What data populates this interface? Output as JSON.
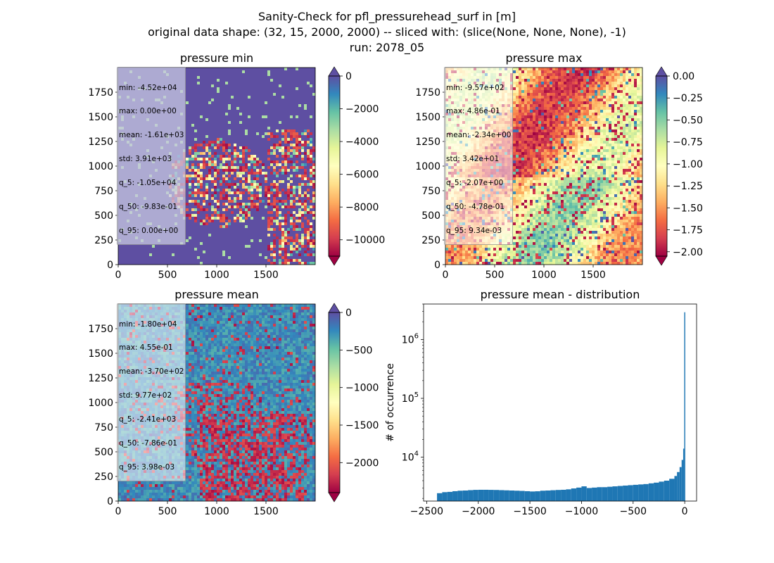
{
  "figure": {
    "title_lines": [
      "Sanity-Check for pfl_pressurehead_surf in [m]",
      "original data shape: (32, 15, 2000, 2000) -- sliced with: (slice(None, None, None), -1)",
      "run: 2078_05"
    ]
  },
  "chart_data": [
    {
      "type": "heatmap",
      "title": "pressure min",
      "colormap": "Spectral",
      "xticks": [
        0,
        500,
        1000,
        1500
      ],
      "yticks": [
        0,
        250,
        500,
        750,
        1000,
        1250,
        1500,
        1750
      ],
      "xlim": [
        0,
        2000
      ],
      "ylim": [
        0,
        2000
      ],
      "colorbar": {
        "range": [
          -11000,
          0
        ],
        "ticks": [
          0,
          -2000,
          -4000,
          -6000,
          -8000,
          -10000
        ],
        "extend": "both"
      },
      "stats": [
        "min: -4.52e+04",
        "max: 0.00e+00",
        "mean: -1.61e+03",
        "std: 3.91e+03",
        "q_5: -1.05e+04",
        "q_50: -9.83e-01",
        "q_95: 0.00e+00"
      ]
    },
    {
      "type": "heatmap",
      "title": "pressure max",
      "colormap": "Spectral",
      "xticks": [
        0,
        500,
        1000,
        1500
      ],
      "yticks": [
        0,
        250,
        500,
        750,
        1000,
        1250,
        1500,
        1750
      ],
      "xlim": [
        0,
        2000
      ],
      "ylim": [
        0,
        2000
      ],
      "colorbar": {
        "range": [
          -2.05,
          0.0
        ],
        "ticks": [
          "0.00",
          "-0.25",
          "-0.50",
          "-0.75",
          "-1.00",
          "-1.25",
          "-1.50",
          "-1.75",
          "-2.00"
        ],
        "extend": "both"
      },
      "stats": [
        "min: -9.57e+02",
        "max: 4.86e-01",
        "mean: -2.34e+00",
        "std: 3.42e+01",
        "q_5: -2.07e+00",
        "q_50: -4.78e-01",
        "q_95: 9.34e-03"
      ]
    },
    {
      "type": "heatmap",
      "title": "pressure mean",
      "colormap": "Spectral",
      "xticks": [
        0,
        500,
        1000,
        1500
      ],
      "yticks": [
        0,
        250,
        500,
        750,
        1000,
        1250,
        1500,
        1750
      ],
      "xlim": [
        0,
        2000
      ],
      "ylim": [
        0,
        2000
      ],
      "colorbar": {
        "range": [
          -2400,
          0
        ],
        "ticks": [
          0,
          -500,
          -1000,
          -1500,
          -2000
        ],
        "extend": "both"
      },
      "stats": [
        "min: -1.80e+04",
        "max: 4.55e-01",
        "mean: -3.70e+02",
        "std: 9.77e+02",
        "q_5: -2.41e+03",
        "q_50: -7.86e-01",
        "q_95: 3.98e-03"
      ]
    },
    {
      "type": "bar",
      "title": "pressure mean - distribution",
      "ylabel": "# of occurrence",
      "yscale": "log",
      "xlim": [
        -2530,
        115
      ],
      "ylim": [
        1800,
        4000000
      ],
      "xticks": [
        -2500,
        -2000,
        -1500,
        -1000,
        -500,
        0
      ],
      "yticks": [
        {
          "value": 10000,
          "label": "10^4"
        },
        {
          "value": 100000,
          "label": "10^5"
        },
        {
          "value": 1000000,
          "label": "10^6"
        }
      ],
      "bar_color": "#1f77b4",
      "bins": {
        "x": [
          -2400,
          -2350,
          -2300,
          -2250,
          -2200,
          -2150,
          -2100,
          -2050,
          -2000,
          -1950,
          -1900,
          -1850,
          -1800,
          -1750,
          -1700,
          -1650,
          -1600,
          -1550,
          -1500,
          -1450,
          -1400,
          -1350,
          -1300,
          -1250,
          -1200,
          -1150,
          -1100,
          -1050,
          -1000,
          -950,
          -900,
          -850,
          -800,
          -750,
          -700,
          -650,
          -600,
          -550,
          -500,
          -450,
          -400,
          -350,
          -300,
          -250,
          -200,
          -150,
          -100,
          -75,
          -50,
          -30,
          -15,
          -5
        ],
        "width": [
          50,
          50,
          50,
          50,
          50,
          50,
          50,
          50,
          50,
          50,
          50,
          50,
          50,
          50,
          50,
          50,
          50,
          50,
          50,
          50,
          50,
          50,
          50,
          50,
          50,
          50,
          50,
          50,
          50,
          50,
          50,
          50,
          50,
          50,
          50,
          50,
          50,
          50,
          50,
          50,
          50,
          50,
          50,
          50,
          50,
          50,
          25,
          25,
          20,
          15,
          10,
          10
        ],
        "count": [
          2450,
          2550,
          2580,
          2650,
          2700,
          2720,
          2760,
          2790,
          2800,
          2800,
          2790,
          2780,
          2760,
          2740,
          2720,
          2700,
          2680,
          2650,
          2620,
          2640,
          2700,
          2720,
          2750,
          2780,
          2800,
          2850,
          2950,
          3050,
          3200,
          3000,
          3050,
          3100,
          3100,
          3150,
          3200,
          3250,
          3300,
          3350,
          3400,
          3450,
          3500,
          3600,
          3700,
          3850,
          4000,
          4300,
          4800,
          5600,
          6800,
          9000,
          14000,
          2900000
        ]
      }
    }
  ]
}
